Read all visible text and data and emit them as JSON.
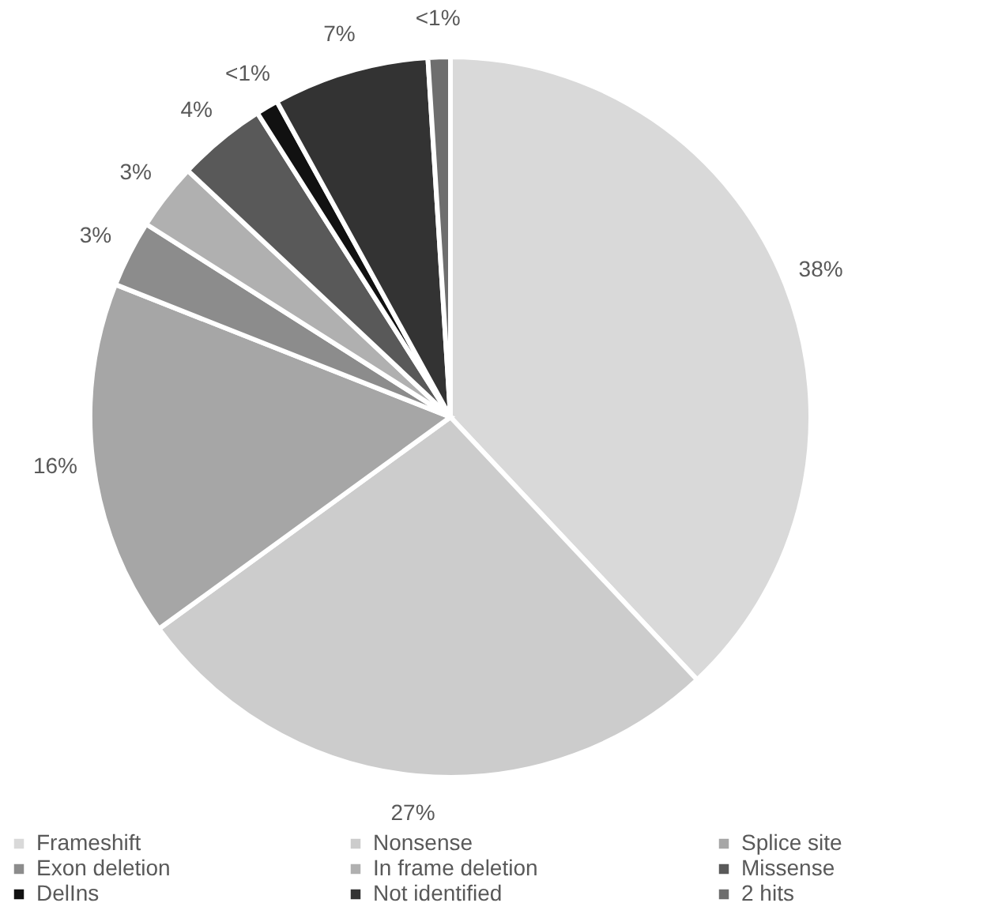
{
  "chart_data": {
    "type": "pie",
    "categories": [
      "Frameshift",
      "Nonsense",
      "Splice site",
      "Exon deletion",
      "In frame deletion",
      "Missense",
      "DelIns",
      "Not identified",
      "2 hits"
    ],
    "values": [
      38,
      27,
      16,
      3,
      3,
      4,
      1,
      7,
      1
    ],
    "value_labels": [
      "38%",
      "27%",
      "16%",
      "3%",
      "3%",
      "4%",
      "<1%",
      "7%",
      "<1%"
    ],
    "colors": [
      "#d9d9d9",
      "#cccccc",
      "#a6a6a6",
      "#8c8c8c",
      "#b0b0b0",
      "#595959",
      "#111111",
      "#333333",
      "#6e6e6e"
    ],
    "legend": "bottom"
  }
}
